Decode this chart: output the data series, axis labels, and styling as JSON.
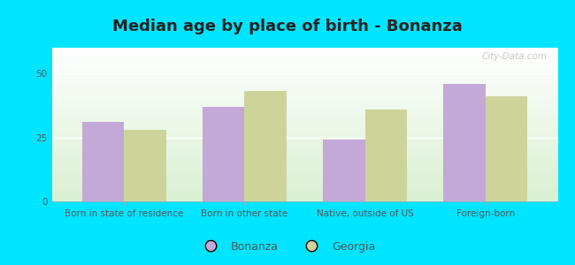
{
  "title": "Median age by place of birth - Bonanza",
  "categories": [
    "Born in state of residence",
    "Born in other state",
    "Native, outside of US",
    "Foreign-born"
  ],
  "bonanza_values": [
    31,
    37,
    24,
    46
  ],
  "georgia_values": [
    28,
    43,
    36,
    41
  ],
  "bonanza_color": "#c4a8d8",
  "georgia_color": "#cdd49a",
  "bar_width": 0.35,
  "ylim": [
    0,
    60
  ],
  "yticks": [
    0,
    25,
    50
  ],
  "legend_labels": [
    "Bonanza",
    "Georgia"
  ],
  "bg_outer": "#00e5ff",
  "title_fontsize": 13,
  "tick_fontsize": 7.5,
  "legend_fontsize": 9,
  "title_color": "#222222",
  "tick_color": "#555555"
}
